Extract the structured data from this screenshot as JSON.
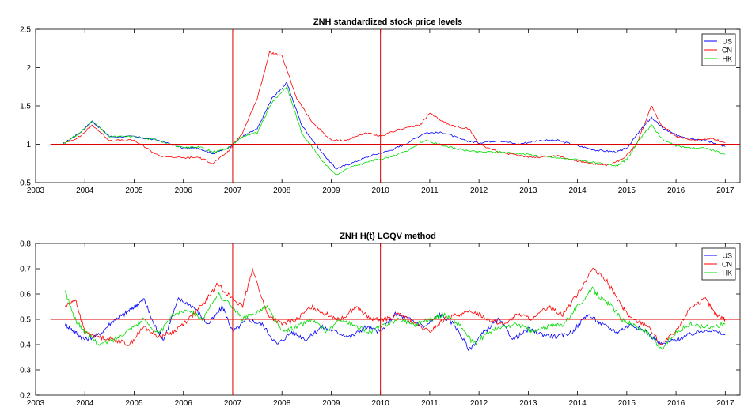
{
  "colors": {
    "US": "#0000ff",
    "CN": "#ff0000",
    "HK": "#00dd00",
    "ref": "#dd0000",
    "axes": "#000000"
  },
  "chart_data": [
    {
      "type": "line",
      "title": "ZNH standardized stock price levels",
      "xlabel": "",
      "ylabel": "",
      "xlim": [
        2003,
        2017.3
      ],
      "ylim": [
        0.5,
        2.5
      ],
      "xticks": [
        2003,
        2004,
        2005,
        2006,
        2007,
        2008,
        2009,
        2010,
        2011,
        2012,
        2013,
        2014,
        2015,
        2016,
        2017
      ],
      "xtick_labels": [
        "2003",
        "2004",
        "2005",
        "2006",
        "2007",
        "2008",
        "2009",
        "2010",
        "2011",
        "2012",
        "2013",
        "2014",
        "2015",
        "2016",
        "2017"
      ],
      "yticks": [
        0.5,
        1,
        1.5,
        2,
        2.5
      ],
      "ytick_labels": [
        "0.5",
        "1",
        "1.5",
        "2",
        "2.5"
      ],
      "hline": 1,
      "vlines": [
        2007,
        2010
      ],
      "legend": [
        "US",
        "CN",
        "HK"
      ],
      "legend_position": "top-right",
      "series": [
        {
          "name": "US",
          "x": [
            2003.55,
            2003.9,
            2004.15,
            2004.5,
            2005.0,
            2005.5,
            2006.0,
            2006.3,
            2006.6,
            2006.9,
            2007.2,
            2007.5,
            2007.8,
            2008.1,
            2008.4,
            2008.8,
            2009.1,
            2009.4,
            2009.8,
            2010.2,
            2010.5,
            2010.9,
            2011.3,
            2011.7,
            2012.0,
            2012.4,
            2012.8,
            2013.2,
            2013.6,
            2014.0,
            2014.4,
            2014.8,
            2015.0,
            2015.3,
            2015.5,
            2015.75,
            2016.0,
            2016.3,
            2016.6,
            2017.0
          ],
          "y": [
            1.0,
            1.15,
            1.3,
            1.1,
            1.1,
            1.05,
            0.95,
            0.95,
            0.88,
            0.95,
            1.1,
            1.2,
            1.6,
            1.8,
            1.25,
            0.9,
            0.68,
            0.75,
            0.85,
            0.92,
            1.0,
            1.15,
            1.15,
            1.05,
            1.02,
            1.05,
            1.0,
            1.05,
            1.05,
            0.98,
            0.92,
            0.9,
            0.95,
            1.2,
            1.35,
            1.2,
            1.12,
            1.08,
            1.05,
            0.97
          ]
        },
        {
          "name": "CN",
          "x": [
            2003.55,
            2003.9,
            2004.15,
            2004.5,
            2005.0,
            2005.5,
            2006.0,
            2006.3,
            2006.6,
            2006.9,
            2007.2,
            2007.5,
            2007.75,
            2008.0,
            2008.3,
            2008.6,
            2009.0,
            2009.3,
            2009.7,
            2010.0,
            2010.4,
            2010.8,
            2011.0,
            2011.4,
            2011.8,
            2012.0,
            2012.4,
            2012.8,
            2013.2,
            2013.6,
            2014.0,
            2014.3,
            2014.6,
            2014.9,
            2015.2,
            2015.5,
            2015.7,
            2016.0,
            2016.4,
            2016.7,
            2017.0
          ],
          "y": [
            1.0,
            1.1,
            1.25,
            1.05,
            1.05,
            0.85,
            0.82,
            0.83,
            0.75,
            0.9,
            1.15,
            1.6,
            2.2,
            2.15,
            1.6,
            1.3,
            1.05,
            1.05,
            1.15,
            1.1,
            1.2,
            1.25,
            1.4,
            1.25,
            1.2,
            1.0,
            0.9,
            0.85,
            0.83,
            0.85,
            0.78,
            0.75,
            0.72,
            0.8,
            1.0,
            1.5,
            1.25,
            1.1,
            1.05,
            1.08,
            1.02
          ]
        },
        {
          "name": "HK",
          "x": [
            2003.55,
            2003.9,
            2004.15,
            2004.5,
            2005.0,
            2005.5,
            2006.0,
            2006.3,
            2006.6,
            2006.9,
            2007.2,
            2007.5,
            2007.8,
            2008.1,
            2008.4,
            2008.8,
            2009.1,
            2009.4,
            2009.8,
            2010.1,
            2010.5,
            2010.9,
            2011.3,
            2011.7,
            2012.0,
            2012.4,
            2012.8,
            2013.2,
            2013.6,
            2014.0,
            2014.4,
            2014.8,
            2015.0,
            2015.3,
            2015.5,
            2015.75,
            2016.0,
            2016.3,
            2016.6,
            2017.0
          ],
          "y": [
            1.0,
            1.15,
            1.3,
            1.1,
            1.1,
            1.05,
            0.95,
            0.97,
            0.9,
            0.95,
            1.1,
            1.15,
            1.55,
            1.75,
            1.15,
            0.8,
            0.6,
            0.7,
            0.78,
            0.82,
            0.9,
            1.05,
            0.98,
            0.92,
            0.9,
            0.9,
            0.88,
            0.85,
            0.82,
            0.8,
            0.75,
            0.72,
            0.8,
            1.1,
            1.25,
            1.05,
            0.98,
            0.95,
            0.95,
            0.87
          ]
        }
      ]
    },
    {
      "type": "line",
      "title": "ZNH H(t) LGQV method",
      "xlabel": "",
      "ylabel": "",
      "xlim": [
        2003,
        2017.3
      ],
      "ylim": [
        0.2,
        0.8
      ],
      "xticks": [
        2003,
        2004,
        2005,
        2006,
        2007,
        2008,
        2009,
        2010,
        2011,
        2012,
        2013,
        2014,
        2015,
        2016,
        2017
      ],
      "xtick_labels": [
        "2003",
        "2004",
        "2005",
        "2006",
        "2007",
        "2008",
        "2009",
        "2010",
        "2011",
        "2012",
        "2013",
        "2014",
        "2015",
        "2016",
        "2017"
      ],
      "yticks": [
        0.2,
        0.3,
        0.4,
        0.5,
        0.6,
        0.7,
        0.8
      ],
      "ytick_labels": [
        "0.2",
        "0.3",
        "0.4",
        "0.5",
        "0.6",
        "0.7",
        "0.8"
      ],
      "hline": 0.5,
      "vlines": [
        2007,
        2010
      ],
      "legend": [
        "US",
        "CN",
        "HK"
      ],
      "legend_position": "top-right",
      "series": [
        {
          "name": "US",
          "x": [
            2003.6,
            2003.8,
            2004.0,
            2004.3,
            2004.6,
            2004.8,
            2005.0,
            2005.2,
            2005.4,
            2005.6,
            2005.9,
            2006.2,
            2006.5,
            2006.8,
            2007.0,
            2007.3,
            2007.6,
            2007.9,
            2008.2,
            2008.5,
            2008.8,
            2009.1,
            2009.4,
            2009.7,
            2010.0,
            2010.3,
            2010.6,
            2010.9,
            2011.2,
            2011.5,
            2011.8,
            2012.1,
            2012.4,
            2012.7,
            2013.0,
            2013.3,
            2013.6,
            2013.9,
            2014.2,
            2014.5,
            2014.8,
            2015.1,
            2015.4,
            2015.7,
            2016.0,
            2016.3,
            2016.6,
            2017.0
          ],
          "y": [
            0.48,
            0.45,
            0.42,
            0.44,
            0.5,
            0.52,
            0.55,
            0.58,
            0.48,
            0.42,
            0.58,
            0.55,
            0.48,
            0.55,
            0.45,
            0.5,
            0.48,
            0.4,
            0.45,
            0.42,
            0.47,
            0.45,
            0.43,
            0.47,
            0.45,
            0.52,
            0.5,
            0.47,
            0.52,
            0.48,
            0.38,
            0.45,
            0.5,
            0.42,
            0.46,
            0.44,
            0.43,
            0.45,
            0.52,
            0.48,
            0.45,
            0.48,
            0.45,
            0.4,
            0.42,
            0.44,
            0.46,
            0.44
          ]
        },
        {
          "name": "CN",
          "x": [
            2003.6,
            2003.8,
            2004.0,
            2004.3,
            2004.6,
            2004.9,
            2005.2,
            2005.5,
            2005.8,
            2006.1,
            2006.4,
            2006.7,
            2007.0,
            2007.2,
            2007.4,
            2007.7,
            2008.0,
            2008.3,
            2008.6,
            2008.9,
            2009.2,
            2009.5,
            2009.8,
            2010.1,
            2010.4,
            2010.7,
            2011.0,
            2011.3,
            2011.6,
            2011.9,
            2012.2,
            2012.5,
            2012.8,
            2013.1,
            2013.4,
            2013.7,
            2014.0,
            2014.3,
            2014.6,
            2014.9,
            2015.1,
            2015.4,
            2015.7,
            2016.0,
            2016.3,
            2016.6,
            2016.8,
            2017.0
          ],
          "y": [
            0.55,
            0.58,
            0.45,
            0.43,
            0.42,
            0.4,
            0.47,
            0.43,
            0.45,
            0.5,
            0.56,
            0.64,
            0.58,
            0.55,
            0.7,
            0.52,
            0.48,
            0.5,
            0.55,
            0.52,
            0.5,
            0.55,
            0.5,
            0.5,
            0.52,
            0.48,
            0.45,
            0.5,
            0.52,
            0.53,
            0.5,
            0.48,
            0.52,
            0.5,
            0.55,
            0.52,
            0.6,
            0.7,
            0.65,
            0.55,
            0.5,
            0.48,
            0.4,
            0.45,
            0.55,
            0.58,
            0.52,
            0.5
          ]
        },
        {
          "name": "HK",
          "x": [
            2003.6,
            2003.8,
            2004.0,
            2004.3,
            2004.6,
            2004.9,
            2005.2,
            2005.5,
            2005.8,
            2006.1,
            2006.4,
            2006.7,
            2007.0,
            2007.2,
            2007.4,
            2007.7,
            2008.0,
            2008.3,
            2008.6,
            2008.9,
            2009.2,
            2009.5,
            2009.8,
            2010.1,
            2010.4,
            2010.7,
            2011.0,
            2011.3,
            2011.6,
            2011.9,
            2012.2,
            2012.5,
            2012.8,
            2013.1,
            2013.4,
            2013.7,
            2014.0,
            2014.3,
            2014.5,
            2014.7,
            2014.9,
            2015.1,
            2015.4,
            2015.7,
            2016.0,
            2016.3,
            2016.6,
            2017.0
          ],
          "y": [
            0.61,
            0.5,
            0.45,
            0.4,
            0.42,
            0.46,
            0.5,
            0.44,
            0.52,
            0.54,
            0.5,
            0.6,
            0.55,
            0.5,
            0.52,
            0.55,
            0.45,
            0.47,
            0.5,
            0.45,
            0.5,
            0.47,
            0.45,
            0.48,
            0.5,
            0.48,
            0.5,
            0.52,
            0.48,
            0.4,
            0.45,
            0.47,
            0.48,
            0.45,
            0.47,
            0.48,
            0.55,
            0.62,
            0.58,
            0.55,
            0.5,
            0.48,
            0.45,
            0.38,
            0.45,
            0.48,
            0.47,
            0.48
          ]
        }
      ]
    }
  ]
}
